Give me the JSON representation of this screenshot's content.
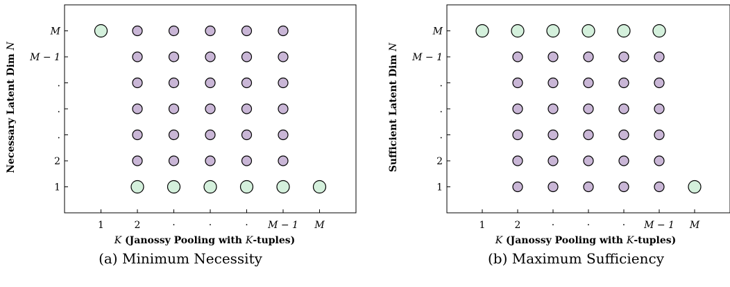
{
  "chart_data": [
    {
      "type": "scatter",
      "caption": "(a) Minimum Necessity",
      "xlabel_parts": [
        {
          "text": "K",
          "italic": true,
          "bold": false
        },
        {
          "text": " (Janossy Pooling with ",
          "italic": false,
          "bold": true
        },
        {
          "text": "K",
          "italic": true,
          "bold": false
        },
        {
          "text": "-tuples)",
          "italic": false,
          "bold": true
        }
      ],
      "ylabel_parts": [
        {
          "text": "Necessary Latent Dim ",
          "italic": false,
          "bold": true
        },
        {
          "text": "N",
          "italic": true,
          "bold": false
        }
      ],
      "x_ticks": [
        {
          "pos": 1,
          "label": "1"
        },
        {
          "pos": 2,
          "label": "2"
        },
        {
          "pos": 3,
          "label": "·"
        },
        {
          "pos": 4,
          "label": "·"
        },
        {
          "pos": 5,
          "label": "·"
        },
        {
          "pos": 6,
          "label": "M − 1"
        },
        {
          "pos": 7,
          "label": "M"
        }
      ],
      "y_ticks": [
        {
          "pos": 1,
          "label": "1"
        },
        {
          "pos": 2,
          "label": "2"
        },
        {
          "pos": 3,
          "label": "."
        },
        {
          "pos": 4,
          "label": "."
        },
        {
          "pos": 5,
          "label": "."
        },
        {
          "pos": 6,
          "label": "M − 1"
        },
        {
          "pos": 7,
          "label": "M"
        }
      ],
      "xlim": [
        0,
        8
      ],
      "ylim": [
        0,
        8
      ],
      "series": [
        {
          "role": "highlight",
          "color": "#d4f0dc",
          "points": [
            [
              1,
              7
            ],
            [
              2,
              1
            ],
            [
              3,
              1
            ],
            [
              4,
              1
            ],
            [
              5,
              1
            ],
            [
              6,
              1
            ],
            [
              7,
              1
            ]
          ]
        },
        {
          "role": "regular",
          "color": "#c9b6d6",
          "points": [
            [
              2,
              2
            ],
            [
              3,
              2
            ],
            [
              4,
              2
            ],
            [
              5,
              2
            ],
            [
              6,
              2
            ],
            [
              2,
              3
            ],
            [
              3,
              3
            ],
            [
              4,
              3
            ],
            [
              5,
              3
            ],
            [
              6,
              3
            ],
            [
              2,
              4
            ],
            [
              3,
              4
            ],
            [
              4,
              4
            ],
            [
              5,
              4
            ],
            [
              6,
              4
            ],
            [
              2,
              5
            ],
            [
              3,
              5
            ],
            [
              4,
              5
            ],
            [
              5,
              5
            ],
            [
              6,
              5
            ],
            [
              2,
              6
            ],
            [
              3,
              6
            ],
            [
              4,
              6
            ],
            [
              5,
              6
            ],
            [
              6,
              6
            ],
            [
              2,
              7
            ],
            [
              3,
              7
            ],
            [
              4,
              7
            ],
            [
              5,
              7
            ],
            [
              6,
              7
            ]
          ]
        }
      ]
    },
    {
      "type": "scatter",
      "caption": "(b) Maximum Sufficiency",
      "xlabel_parts": [
        {
          "text": "K",
          "italic": true,
          "bold": false
        },
        {
          "text": " (Janossy Pooling with ",
          "italic": false,
          "bold": true
        },
        {
          "text": "K",
          "italic": true,
          "bold": false
        },
        {
          "text": "-tuples)",
          "italic": false,
          "bold": true
        }
      ],
      "ylabel_parts": [
        {
          "text": "Sufficient Latent Dim ",
          "italic": false,
          "bold": true
        },
        {
          "text": "N",
          "italic": true,
          "bold": false
        }
      ],
      "x_ticks": [
        {
          "pos": 1,
          "label": "1"
        },
        {
          "pos": 2,
          "label": "2"
        },
        {
          "pos": 3,
          "label": "·"
        },
        {
          "pos": 4,
          "label": "·"
        },
        {
          "pos": 5,
          "label": "·"
        },
        {
          "pos": 6,
          "label": "M − 1"
        },
        {
          "pos": 7,
          "label": "M"
        }
      ],
      "y_ticks": [
        {
          "pos": 1,
          "label": "1"
        },
        {
          "pos": 2,
          "label": "2"
        },
        {
          "pos": 3,
          "label": "."
        },
        {
          "pos": 4,
          "label": "."
        },
        {
          "pos": 5,
          "label": "."
        },
        {
          "pos": 6,
          "label": "M − 1"
        },
        {
          "pos": 7,
          "label": "M"
        }
      ],
      "xlim": [
        0,
        8
      ],
      "ylim": [
        0,
        8
      ],
      "series": [
        {
          "role": "highlight",
          "color": "#d4f0dc",
          "points": [
            [
              1,
              7
            ],
            [
              2,
              7
            ],
            [
              3,
              7
            ],
            [
              4,
              7
            ],
            [
              5,
              7
            ],
            [
              6,
              7
            ],
            [
              7,
              1
            ]
          ]
        },
        {
          "role": "regular",
          "color": "#c9b6d6",
          "points": [
            [
              2,
              1
            ],
            [
              3,
              1
            ],
            [
              4,
              1
            ],
            [
              5,
              1
            ],
            [
              6,
              1
            ],
            [
              2,
              2
            ],
            [
              3,
              2
            ],
            [
              4,
              2
            ],
            [
              5,
              2
            ],
            [
              6,
              2
            ],
            [
              2,
              3
            ],
            [
              3,
              3
            ],
            [
              4,
              3
            ],
            [
              5,
              3
            ],
            [
              6,
              3
            ],
            [
              2,
              4
            ],
            [
              3,
              4
            ],
            [
              4,
              4
            ],
            [
              5,
              4
            ],
            [
              6,
              4
            ],
            [
              2,
              5
            ],
            [
              3,
              5
            ],
            [
              4,
              5
            ],
            [
              5,
              5
            ],
            [
              6,
              5
            ],
            [
              2,
              6
            ],
            [
              3,
              6
            ],
            [
              4,
              6
            ],
            [
              5,
              6
            ],
            [
              6,
              6
            ]
          ]
        }
      ]
    }
  ]
}
